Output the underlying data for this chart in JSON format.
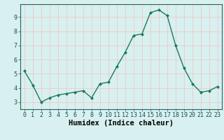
{
  "x": [
    0,
    1,
    2,
    3,
    4,
    5,
    6,
    7,
    8,
    9,
    10,
    11,
    12,
    13,
    14,
    15,
    16,
    17,
    18,
    19,
    20,
    21,
    22,
    23
  ],
  "y": [
    5.2,
    4.2,
    3.0,
    3.3,
    3.5,
    3.6,
    3.7,
    3.8,
    3.3,
    4.3,
    4.4,
    5.5,
    6.5,
    7.7,
    7.8,
    9.3,
    9.5,
    9.1,
    7.0,
    5.4,
    4.3,
    3.7,
    3.8,
    4.1
  ],
  "xlabel": "Humidex (Indice chaleur)",
  "ylim": [
    2.5,
    9.9
  ],
  "xlim": [
    -0.5,
    23.5
  ],
  "yticks": [
    3,
    4,
    5,
    6,
    7,
    8,
    9
  ],
  "xticks": [
    0,
    1,
    2,
    3,
    4,
    5,
    6,
    7,
    8,
    9,
    10,
    11,
    12,
    13,
    14,
    15,
    16,
    17,
    18,
    19,
    20,
    21,
    22,
    23
  ],
  "line_color": "#1a7a5e",
  "marker_color": "#1a7a5e",
  "bg_color": "#d8f0f0",
  "grid_major_color": "#f0c8c8",
  "grid_minor_color": "#c8e8e8",
  "tick_label_fontsize": 6,
  "xlabel_fontsize": 7.5
}
